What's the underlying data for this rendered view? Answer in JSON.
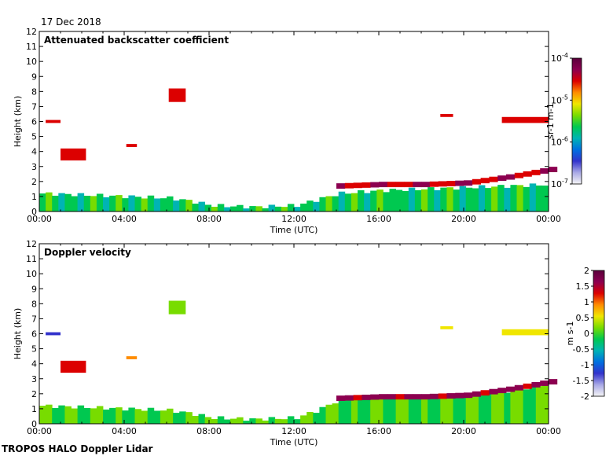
{
  "date_label": "17 Dec 2018",
  "footer_label": "TROPOS HALO Doppler Lidar",
  "chart_data": [
    {
      "type": "heatmap",
      "title": "Attenuated backscatter coefficient",
      "xlabel": "Time (UTC)",
      "ylabel": "Height (km)",
      "xlim": [
        0,
        24
      ],
      "ylim": [
        0,
        12
      ],
      "x_ticks": [
        "00:00",
        "04:00",
        "08:00",
        "12:00",
        "16:00",
        "20:00",
        "00:00"
      ],
      "y_ticks": [
        "0",
        "1",
        "2",
        "3",
        "4",
        "5",
        "6",
        "7",
        "8",
        "9",
        "10",
        "11",
        "12"
      ],
      "colorbar": {
        "scale": "log",
        "unit_label": "sr-1 m-1",
        "ticks": [
          "10-4",
          "10-5",
          "10-6",
          "10-7"
        ],
        "colormap": [
          "#f5f5f5",
          "#a9a9e6",
          "#3333cc",
          "#0070e0",
          "#00b4b4",
          "#00c850",
          "#78dc00",
          "#f0e600",
          "#ff8c00",
          "#dc0000",
          "#8c0050",
          "#5a003c"
        ]
      },
      "features": [
        {
          "kind": "boundary_layer",
          "t": [
            0,
            2,
            4,
            6,
            7,
            8,
            10,
            12,
            13,
            14,
            16,
            18,
            20,
            22,
            24
          ],
          "top_km": [
            1.2,
            1.1,
            1.0,
            0.9,
            0.7,
            0.4,
            0.3,
            0.4,
            0.8,
            1.2,
            1.4,
            1.5,
            1.6,
            1.7,
            1.8
          ],
          "level": 0.45
        },
        {
          "kind": "cloud_layer",
          "t": [
            14,
            16,
            18,
            20,
            22,
            24
          ],
          "height_km": [
            1.7,
            1.8,
            1.8,
            1.9,
            2.3,
            2.8
          ],
          "level": 0.85
        },
        {
          "kind": "cloud_patch",
          "t": [
            0.3,
            1.0
          ],
          "height_km": [
            5.9,
            6.1
          ],
          "level": 0.8
        },
        {
          "kind": "cloud_patch",
          "t": [
            1.0,
            2.2
          ],
          "height_km": [
            3.4,
            4.2
          ],
          "level": 0.85
        },
        {
          "kind": "cloud_patch",
          "t": [
            4.1,
            4.6
          ],
          "height_km": [
            4.3,
            4.5
          ],
          "level": 0.8
        },
        {
          "kind": "cloud_patch",
          "t": [
            6.1,
            6.9
          ],
          "height_km": [
            7.3,
            8.2
          ],
          "level": 0.85
        },
        {
          "kind": "cloud_patch",
          "t": [
            18.9,
            19.5
          ],
          "height_km": [
            6.3,
            6.5
          ],
          "level": 0.8
        },
        {
          "kind": "cloud_patch",
          "t": [
            21.8,
            24.0
          ],
          "height_km": [
            5.9,
            6.3
          ],
          "level": 0.85
        }
      ]
    },
    {
      "type": "heatmap",
      "title": "Doppler velocity",
      "xlabel": "Time (UTC)",
      "ylabel": "Height (km)",
      "xlim": [
        0,
        24
      ],
      "ylim": [
        0,
        12
      ],
      "x_ticks": [
        "00:00",
        "04:00",
        "08:00",
        "12:00",
        "16:00",
        "20:00",
        "00:00"
      ],
      "y_ticks": [
        "0",
        "1",
        "2",
        "3",
        "4",
        "5",
        "6",
        "7",
        "8",
        "9",
        "10",
        "11",
        "12"
      ],
      "colorbar": {
        "scale": "linear",
        "unit_label": "m s-1",
        "ticks": [
          "2",
          "1.5",
          "1",
          "0.5",
          "0",
          "-0.5",
          "-1",
          "-1.5",
          "-2"
        ],
        "range": [
          -2,
          2
        ],
        "colormap": [
          "#f5f5f5",
          "#a9a9e6",
          "#3333cc",
          "#0070e0",
          "#00b4b4",
          "#00c850",
          "#78dc00",
          "#f0e600",
          "#ff8c00",
          "#dc0000",
          "#8c0050",
          "#5a003c"
        ]
      },
      "features": [
        {
          "kind": "boundary_layer",
          "t": [
            0,
            2,
            4,
            6,
            7,
            8,
            10,
            12,
            13,
            14,
            16,
            18,
            20,
            22,
            24
          ],
          "top_km": [
            1.2,
            1.1,
            1.0,
            0.9,
            0.7,
            0.4,
            0.3,
            0.4,
            0.9,
            1.6,
            1.8,
            1.8,
            1.9,
            2.2,
            2.7
          ],
          "level": 0.5
        },
        {
          "kind": "cloud_layer",
          "t": [
            14,
            16,
            18,
            20,
            22,
            24
          ],
          "height_km": [
            1.7,
            1.8,
            1.8,
            1.9,
            2.3,
            2.8
          ],
          "level": 0.9
        },
        {
          "kind": "cloud_patch",
          "t": [
            0.3,
            1.0
          ],
          "height_km": [
            5.9,
            6.1
          ],
          "level": 0.2
        },
        {
          "kind": "cloud_patch",
          "t": [
            1.0,
            2.2
          ],
          "height_km": [
            3.4,
            4.2
          ],
          "level": 0.85
        },
        {
          "kind": "cloud_patch",
          "t": [
            4.1,
            4.6
          ],
          "height_km": [
            4.3,
            4.5
          ],
          "level": 0.75
        },
        {
          "kind": "cloud_patch",
          "t": [
            6.1,
            6.9
          ],
          "height_km": [
            7.3,
            8.2
          ],
          "level": 0.55
        },
        {
          "kind": "cloud_patch",
          "t": [
            18.9,
            19.5
          ],
          "height_km": [
            6.3,
            6.5
          ],
          "level": 0.65
        },
        {
          "kind": "cloud_patch",
          "t": [
            21.8,
            24.0
          ],
          "height_km": [
            5.9,
            6.3
          ],
          "level": 0.6
        }
      ]
    }
  ]
}
